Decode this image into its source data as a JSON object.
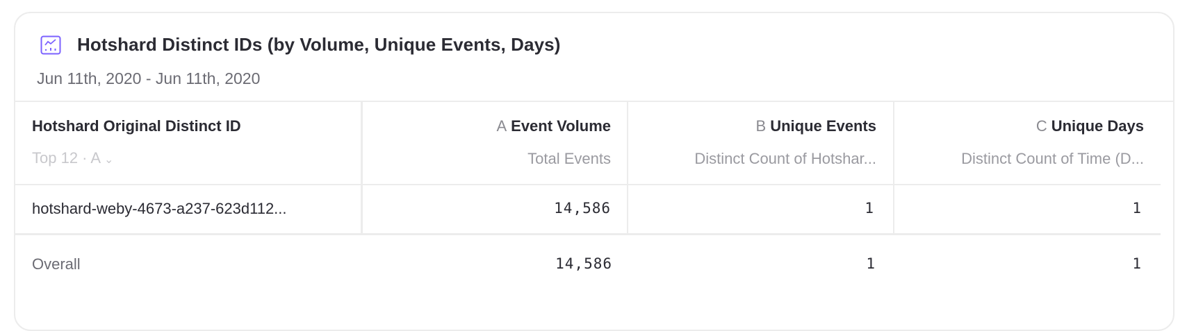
{
  "card": {
    "title": "Hotshard Distinct IDs (by Volume, Unique Events, Days)",
    "date_range": "Jun 11th, 2020 - Jun 11th, 2020",
    "icon": "line-chart-icon",
    "accent_color": "#7b61ff"
  },
  "table": {
    "group_column": {
      "header": "Hotshard Original Distinct ID",
      "selector": "Top 12 · A",
      "selector_icon": "chevron-down-icon"
    },
    "columns": [
      {
        "letter": "A",
        "name": "Event Volume",
        "sub": "Total Events"
      },
      {
        "letter": "B",
        "name": "Unique Events",
        "sub": "Distinct Count of Hotshar..."
      },
      {
        "letter": "C",
        "name": "Unique Days",
        "sub": "Distinct Count of Time (D..."
      }
    ],
    "rows": [
      {
        "label": "hotshard-weby-4673-a237-623d112...",
        "values": [
          "14,586",
          "1",
          "1"
        ]
      }
    ],
    "overall": {
      "label": "Overall",
      "values": [
        "14,586",
        "1",
        "1"
      ]
    }
  }
}
